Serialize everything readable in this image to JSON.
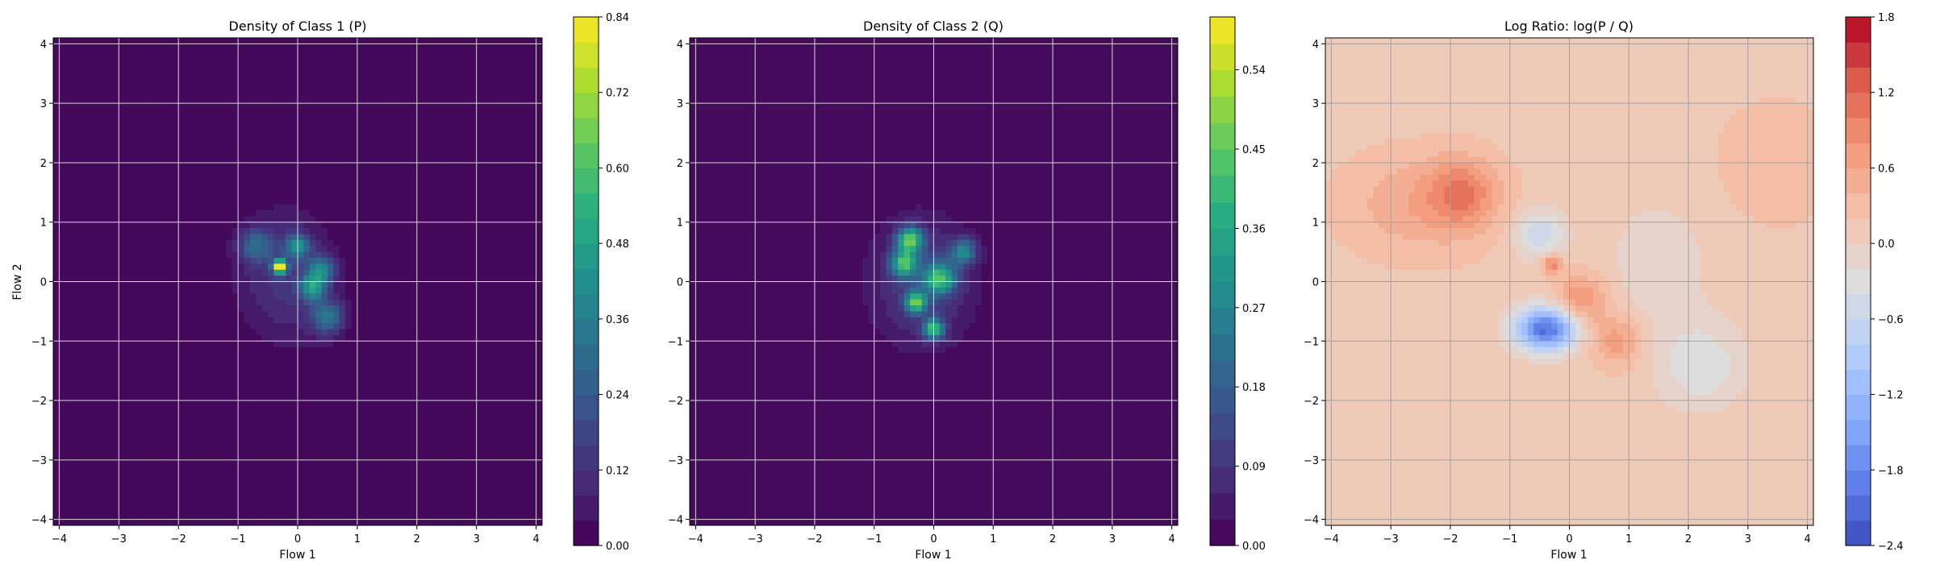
{
  "chart_data": [
    {
      "type": "heatmap",
      "title": "Density of Class 1 (P)",
      "xlabel": "Flow 1",
      "ylabel": "Flow 2",
      "xlim": [
        -4.1,
        4.1
      ],
      "ylim": [
        -4.1,
        4.1
      ],
      "x_ticks": [
        -4,
        -3,
        -2,
        -1,
        0,
        1,
        2,
        3,
        4
      ],
      "y_ticks": [
        -4,
        -3,
        -2,
        -1,
        0,
        1,
        2,
        3,
        4
      ],
      "grid": true,
      "colormap": "viridis",
      "colorbar": {
        "min": 0.0,
        "max": 0.84,
        "levels": 21,
        "ticks": [
          "0.00",
          "0.12",
          "0.24",
          "0.36",
          "0.48",
          "0.60",
          "0.72",
          "0.84"
        ]
      },
      "background_value": 0.0,
      "density_blobs": [
        {
          "x": -0.2,
          "y": 0.1,
          "sx": 0.55,
          "sy": 0.75,
          "amp": 0.14
        },
        {
          "x": -0.3,
          "y": 0.25,
          "sx": 0.08,
          "sy": 0.08,
          "amp": 0.8
        },
        {
          "x": 0.0,
          "y": 0.6,
          "sx": 0.14,
          "sy": 0.14,
          "amp": 0.35
        },
        {
          "x": 0.25,
          "y": -0.1,
          "sx": 0.15,
          "sy": 0.15,
          "amp": 0.4
        },
        {
          "x": 0.4,
          "y": 0.2,
          "sx": 0.15,
          "sy": 0.15,
          "amp": 0.35
        },
        {
          "x": 0.5,
          "y": -0.6,
          "sx": 0.2,
          "sy": 0.2,
          "amp": 0.3
        },
        {
          "x": -0.7,
          "y": 0.6,
          "sx": 0.2,
          "sy": 0.2,
          "amp": 0.25
        }
      ]
    },
    {
      "type": "heatmap",
      "title": "Density of Class 2 (Q)",
      "xlabel": "Flow 1",
      "xlim": [
        -4.1,
        4.1
      ],
      "ylim": [
        -4.1,
        4.1
      ],
      "x_ticks": [
        -4,
        -3,
        -2,
        -1,
        0,
        1,
        2,
        3,
        4
      ],
      "y_ticks": [
        -4,
        -3,
        -2,
        -1,
        0,
        1,
        2,
        3,
        4
      ],
      "grid": true,
      "colormap": "viridis",
      "colorbar": {
        "min": 0.0,
        "max": 0.6,
        "levels": 20,
        "ticks": [
          "0.00",
          "0.09",
          "0.18",
          "0.27",
          "0.36",
          "0.45",
          "0.54"
        ]
      },
      "background_value": 0.0,
      "density_blobs": [
        {
          "x": -0.2,
          "y": 0.0,
          "sx": 0.6,
          "sy": 0.75,
          "amp": 0.12
        },
        {
          "x": -0.4,
          "y": 0.7,
          "sx": 0.15,
          "sy": 0.15,
          "amp": 0.42
        },
        {
          "x": -0.5,
          "y": 0.3,
          "sx": 0.15,
          "sy": 0.15,
          "amp": 0.35
        },
        {
          "x": 0.1,
          "y": 0.05,
          "sx": 0.18,
          "sy": 0.18,
          "amp": 0.35
        },
        {
          "x": -0.3,
          "y": -0.35,
          "sx": 0.12,
          "sy": 0.12,
          "amp": 0.4
        },
        {
          "x": 0.0,
          "y": -0.8,
          "sx": 0.12,
          "sy": 0.12,
          "amp": 0.38
        },
        {
          "x": 0.5,
          "y": 0.5,
          "sx": 0.15,
          "sy": 0.15,
          "amp": 0.25
        }
      ]
    },
    {
      "type": "heatmap",
      "title": "Log Ratio: log(P / Q)",
      "xlabel": "Flow 1",
      "xlim": [
        -4.1,
        4.1
      ],
      "ylim": [
        -4.1,
        4.1
      ],
      "x_ticks": [
        -4,
        -3,
        -2,
        -1,
        0,
        1,
        2,
        3,
        4
      ],
      "y_ticks": [
        -4,
        -3,
        -2,
        -1,
        0,
        1,
        2,
        3,
        4
      ],
      "grid": true,
      "colormap": "coolwarm",
      "colorbar": {
        "min": -2.4,
        "max": 1.8,
        "levels": 21,
        "ticks": [
          "−2.4",
          "−1.8",
          "−1.2",
          "−0.6",
          "0.0",
          "0.6",
          "1.2",
          "1.8"
        ]
      },
      "background_value": 0.12,
      "density_blobs": [
        {
          "x": -2.5,
          "y": 1.3,
          "sx": 0.9,
          "sy": 0.6,
          "amp": 0.45
        },
        {
          "x": -1.8,
          "y": 1.5,
          "sx": 0.4,
          "sy": 0.4,
          "amp": 0.7
        },
        {
          "x": -0.4,
          "y": -0.8,
          "sx": 0.35,
          "sy": 0.25,
          "amp": -2.2
        },
        {
          "x": -0.5,
          "y": 0.8,
          "sx": 0.3,
          "sy": 0.3,
          "amp": -0.7
        },
        {
          "x": -0.3,
          "y": 0.3,
          "sx": 0.12,
          "sy": 0.12,
          "amp": 0.9
        },
        {
          "x": 0.2,
          "y": -0.3,
          "sx": 0.3,
          "sy": 0.3,
          "amp": 0.7
        },
        {
          "x": 0.8,
          "y": -1.0,
          "sx": 0.3,
          "sy": 0.3,
          "amp": 0.6
        },
        {
          "x": 2.2,
          "y": -1.4,
          "sx": 0.5,
          "sy": 0.5,
          "amp": -0.5
        },
        {
          "x": 1.5,
          "y": 0.3,
          "sx": 0.6,
          "sy": 0.8,
          "amp": -0.25
        },
        {
          "x": 3.5,
          "y": 2.0,
          "sx": 0.8,
          "sy": 0.8,
          "amp": 0.2
        }
      ]
    }
  ]
}
